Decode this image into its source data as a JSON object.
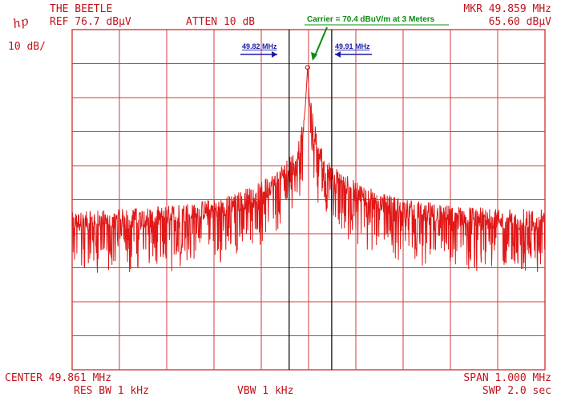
{
  "header": {
    "title": "THE BEETLE",
    "ref": "REF 76.7 dBμV",
    "atten": "ATTEN 10 dB",
    "mkr_freq": "MKR 49.859 MHz",
    "mkr_level": "65.60 dBμV",
    "scale": "10 dB/",
    "logo": "hp"
  },
  "footer": {
    "center": "CENTER 49.861 MHz",
    "span": "SPAN 1.000 MHz",
    "res_bw": "RES BW 1 kHz",
    "vbw": "VBW 1 kHz",
    "swp": "SWP 2.0 sec"
  },
  "annotations": {
    "left_marker": "49.82 MHz",
    "right_marker": "49.91 MHz",
    "carrier": "Carrier = 70.4 dBuV/m at 3 Meters"
  },
  "colors": {
    "grid": "#d23b3b",
    "trace": "#e01818",
    "marker_lines": "#000000",
    "annotation_blue": "#1a1aa8",
    "annotation_green": "#0a8a10"
  },
  "chart_data": {
    "type": "line",
    "title": "",
    "xlabel": "",
    "ylabel": "",
    "xlim": [
      49.361,
      50.361
    ],
    "ylim": [
      -23.3,
      76.7
    ],
    "grid": true,
    "x_divisions": 10,
    "y_divisions": 10,
    "reference_lines_x": [
      49.82,
      49.91
    ],
    "marker": {
      "x": 49.859,
      "y": 65.6
    },
    "series": [
      {
        "x": [
          49.361,
          49.461,
          49.561,
          49.661,
          49.711,
          49.761,
          49.791,
          49.811,
          49.831,
          49.841,
          49.851,
          49.855,
          49.859,
          49.863,
          49.871,
          49.881,
          49.891,
          49.911,
          49.961,
          50.011,
          50.061,
          50.161,
          50.261,
          50.361
        ],
        "y": [
          20,
          21,
          22,
          24,
          26,
          29,
          32,
          35,
          38,
          42,
          48,
          56,
          65.6,
          55,
          48,
          42,
          38,
          34,
          29,
          26,
          24,
          22,
          21,
          21
        ]
      }
    ]
  }
}
